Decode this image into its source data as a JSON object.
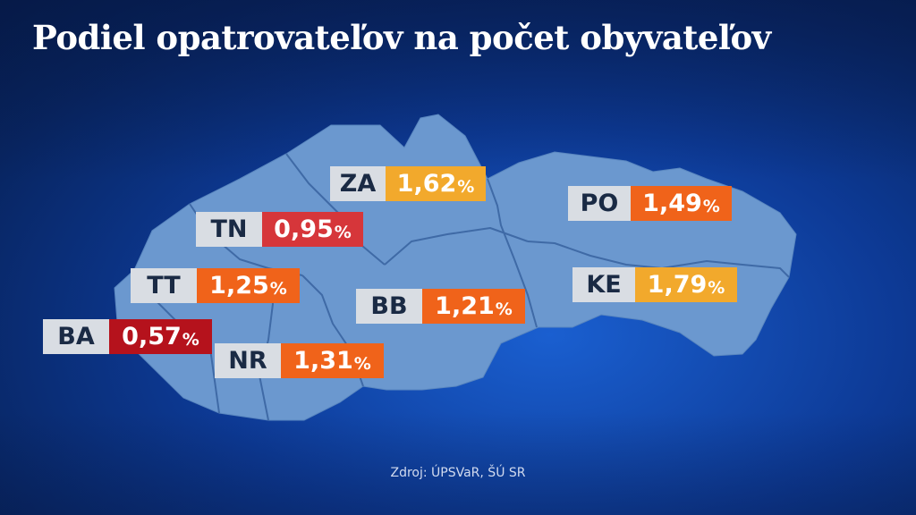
{
  "title": "Podiel opatrovateľov na počet obyvateľov",
  "source": "Zdroj: ÚPSVaR, ŠÚ SR",
  "percent_sign": "%",
  "colors": {
    "map_fill": "#6b98cf",
    "map_border": "#3f6aa6",
    "label_code_bg": "#d9dde3",
    "label_code_text": "#1a2a44",
    "high": "#f2a92c",
    "mid": "#f0631a",
    "low": "#d6363a",
    "lowest": "#b5121c"
  },
  "regions": [
    {
      "code": "ZA",
      "value": "1,62",
      "color": "#f2a92c"
    },
    {
      "code": "PO",
      "value": "1,49",
      "color": "#f0631a"
    },
    {
      "code": "TN",
      "value": "0,95",
      "color": "#d6363a"
    },
    {
      "code": "TT",
      "value": "1,25",
      "color": "#f0631a"
    },
    {
      "code": "KE",
      "value": "1,79",
      "color": "#f2a92c"
    },
    {
      "code": "BB",
      "value": "1,21",
      "color": "#f0631a"
    },
    {
      "code": "BA",
      "value": "0,57",
      "color": "#b5121c"
    },
    {
      "code": "NR",
      "value": "1,31",
      "color": "#f0631a"
    }
  ]
}
